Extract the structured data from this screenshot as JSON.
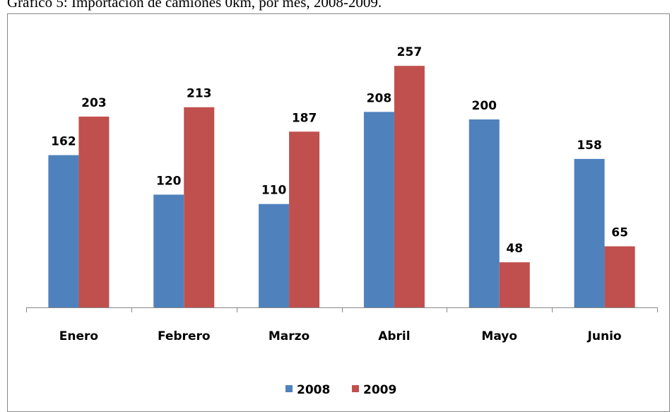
{
  "chart_data": {
    "type": "bar",
    "title": "Gráfico 5: Importación de camiones 0km, por mes, 2008-2009.",
    "categories": [
      "Enero",
      "Febrero",
      "Marzo",
      "Abril",
      "Mayo",
      "Junio"
    ],
    "series": [
      {
        "name": "2008",
        "color": "#4f81bd",
        "values": [
          162,
          120,
          110,
          208,
          200,
          158
        ]
      },
      {
        "name": "2009",
        "color": "#c0504d",
        "values": [
          203,
          213,
          187,
          257,
          48,
          65
        ]
      }
    ],
    "ylim": [
      0,
      300
    ]
  }
}
